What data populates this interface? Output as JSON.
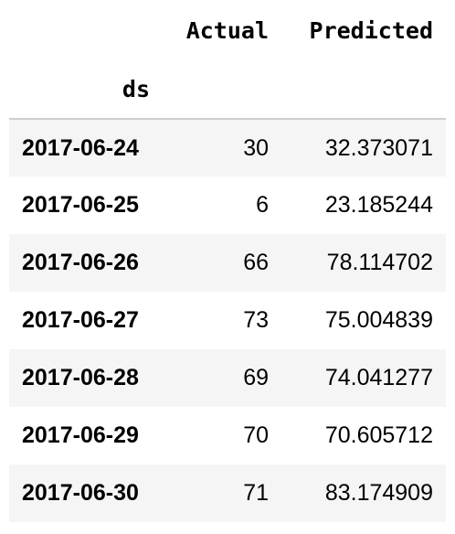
{
  "table": {
    "columns": [
      "Actual",
      "Predicted"
    ],
    "index_name": "ds",
    "rows": [
      {
        "ds": "2017-06-24",
        "actual": "30",
        "predicted": "32.373071"
      },
      {
        "ds": "2017-06-25",
        "actual": "6",
        "predicted": "23.185244"
      },
      {
        "ds": "2017-06-26",
        "actual": "66",
        "predicted": "78.114702"
      },
      {
        "ds": "2017-06-27",
        "actual": "73",
        "predicted": "75.004839"
      },
      {
        "ds": "2017-06-28",
        "actual": "69",
        "predicted": "74.041277"
      },
      {
        "ds": "2017-06-29",
        "actual": "70",
        "predicted": "70.605712"
      },
      {
        "ds": "2017-06-30",
        "actual": "71",
        "predicted": "83.174909"
      }
    ]
  },
  "colors": {
    "stripe": "#f5f5f5",
    "header_rule": "#cfcfcf"
  }
}
